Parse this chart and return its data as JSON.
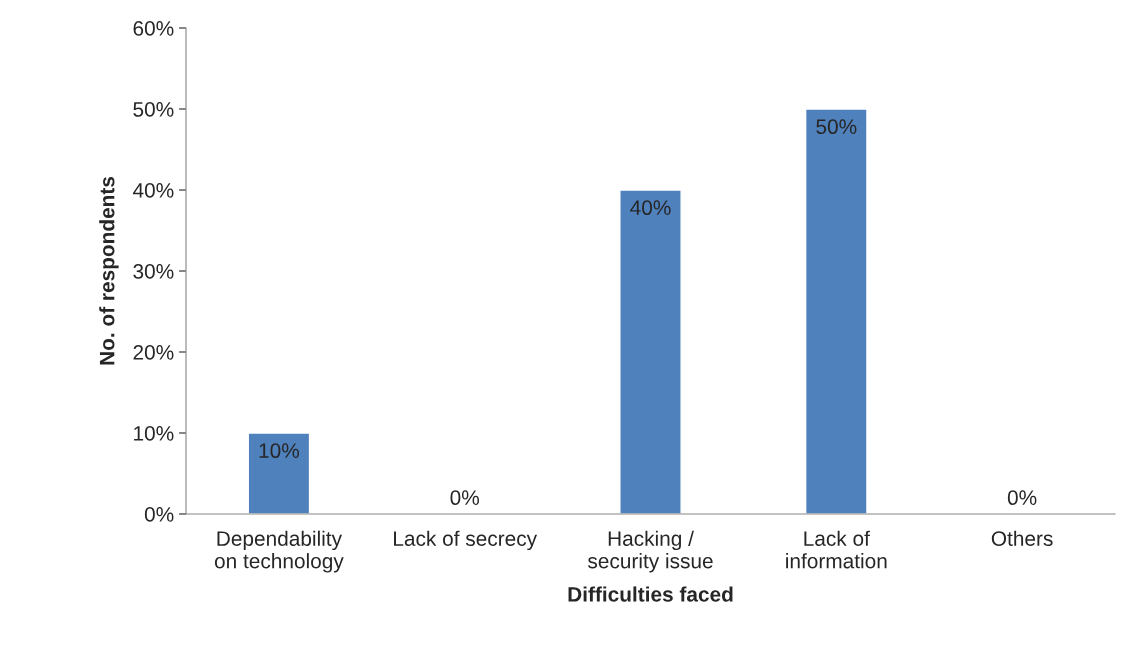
{
  "chart_data": {
    "type": "bar",
    "xlabel": "Difficulties faced",
    "ylabel": "No. of respondents",
    "categories": [
      "Dependability\non technology",
      "Lack of secrecy",
      "Hacking /\nsecurity issue",
      "Lack of\ninformation",
      "Others"
    ],
    "values": [
      10,
      0,
      40,
      50,
      0
    ],
    "value_labels": [
      "10%",
      "0%",
      "40%",
      "50%",
      "0%"
    ],
    "color": "#4f81bd",
    "ylim": [
      0,
      60
    ],
    "yticks": [
      {
        "value": 0,
        "label": "0%"
      },
      {
        "value": 10,
        "label": "10%"
      },
      {
        "value": 20,
        "label": "20%"
      },
      {
        "value": 30,
        "label": "30%"
      },
      {
        "value": 40,
        "label": "40%"
      },
      {
        "value": 50,
        "label": "50%"
      },
      {
        "value": 60,
        "label": "60%"
      }
    ],
    "grid": false,
    "legend": false
  }
}
